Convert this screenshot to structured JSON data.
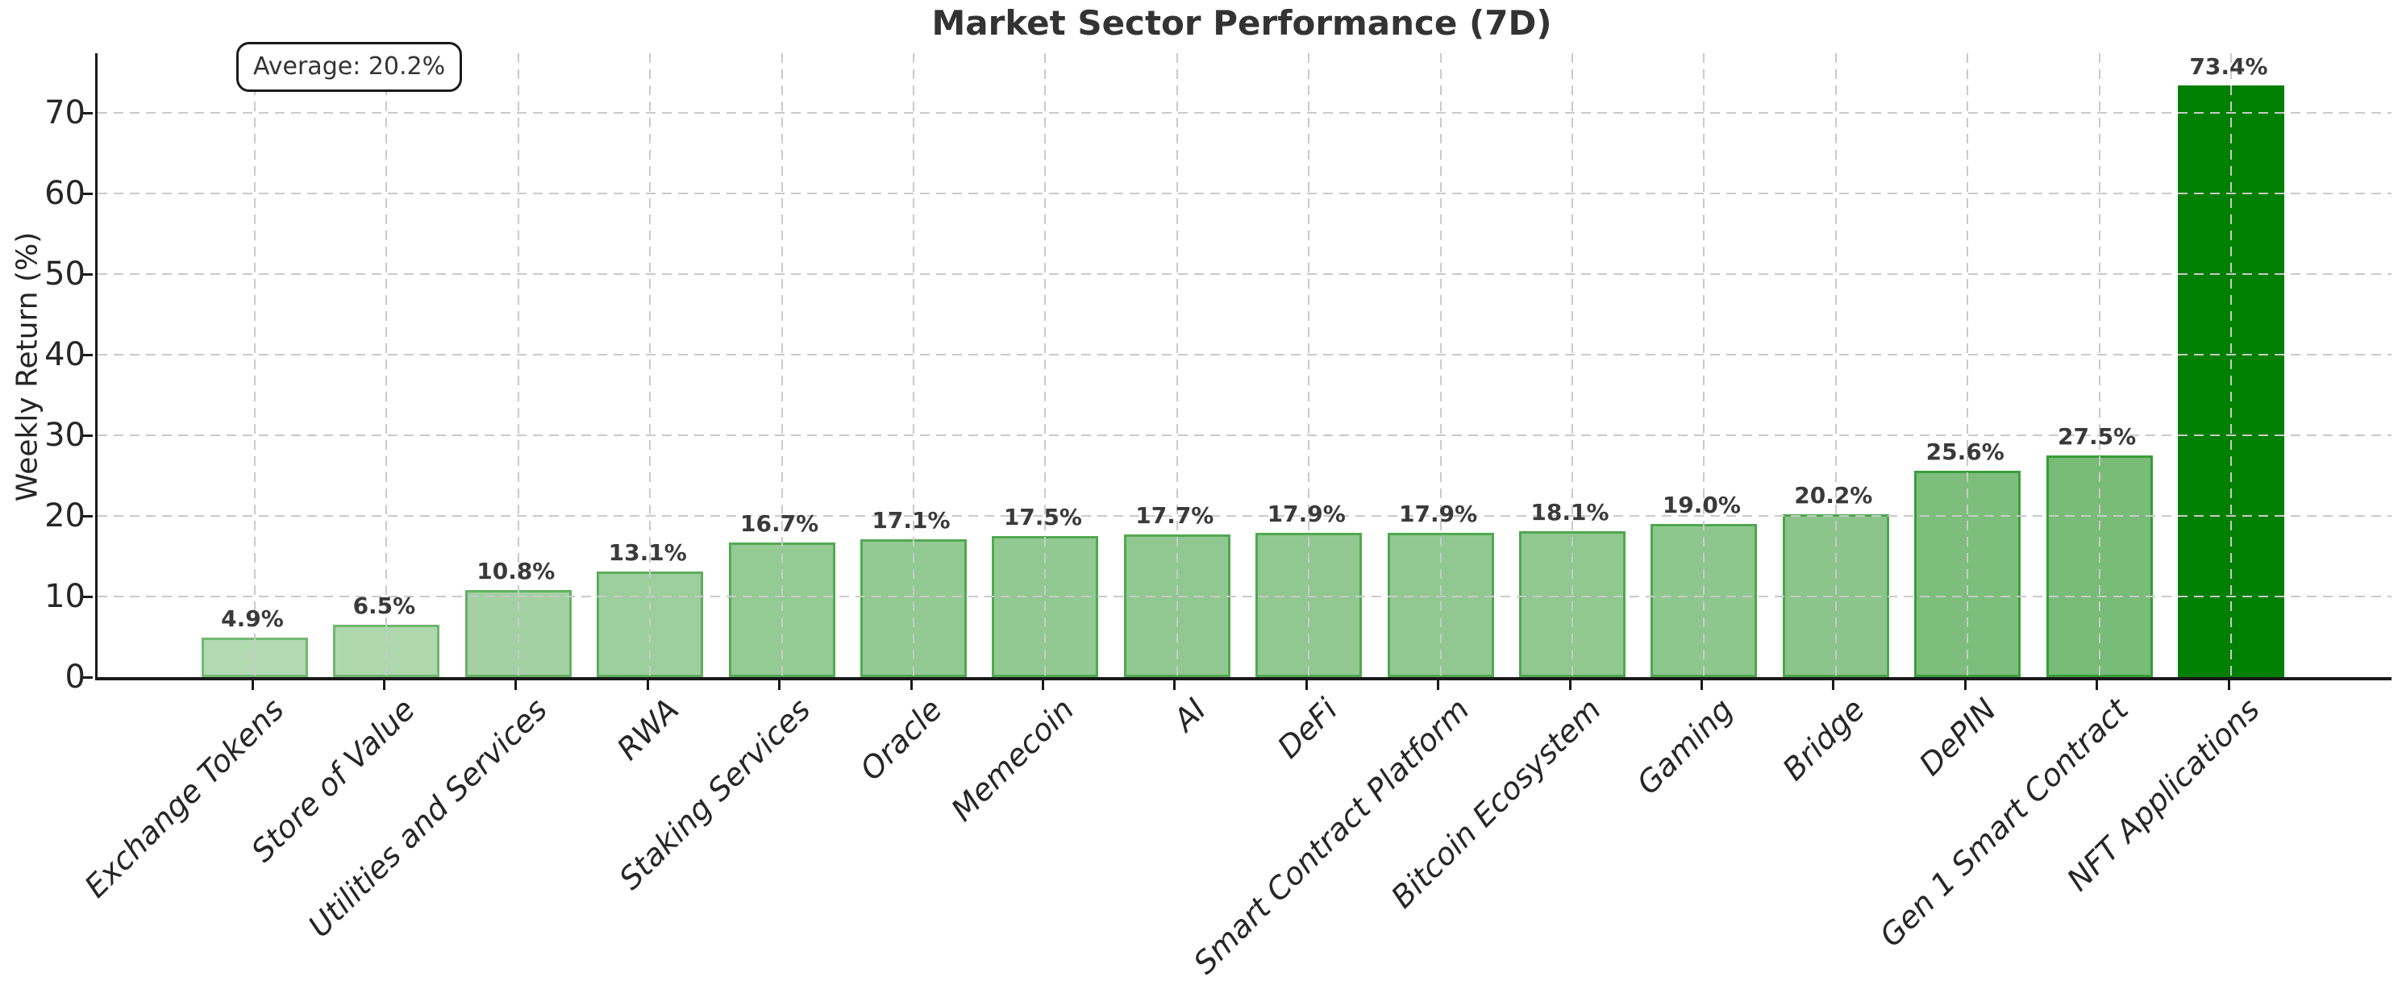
{
  "figure": {
    "title": "Market Sector Performance (7D)",
    "ylabel": "Weekly Return (%)",
    "annotation": "Average: 20.2%"
  },
  "chart_data": {
    "type": "bar",
    "title": "Market Sector Performance (7D)",
    "xlabel": "",
    "ylabel": "Weekly Return (%)",
    "annotation": "Average: 20.2%",
    "legend": "none",
    "grid": "dashed both axes, drawn above bars",
    "categories": [
      "Exchange Tokens",
      "Store of Value",
      "Utilities and Services",
      "RWA",
      "Staking Services",
      "Oracle",
      "Memecoin",
      "AI",
      "DeFi",
      "Smart Contract Platform",
      "Bitcoin Ecosystem",
      "Gaming",
      "Bridge",
      "DePIN",
      "Gen 1 Smart Contract",
      "NFT Applications"
    ],
    "values": [
      4.9,
      6.5,
      10.8,
      13.1,
      16.7,
      17.1,
      17.5,
      17.7,
      17.9,
      17.9,
      18.1,
      19.0,
      20.2,
      25.6,
      27.5,
      73.4
    ],
    "value_labels": [
      "4.9%",
      "6.5%",
      "10.8%",
      "13.1%",
      "16.7%",
      "17.1%",
      "17.5%",
      "17.7%",
      "17.9%",
      "17.9%",
      "18.1%",
      "19.0%",
      "20.2%",
      "25.6%",
      "27.5%",
      "73.4%"
    ],
    "yticks": [
      0,
      10,
      20,
      30,
      40,
      50,
      60,
      70
    ],
    "ytick_labels": [
      "0",
      "10",
      "20",
      "30",
      "40",
      "50",
      "60",
      "70"
    ],
    "ylim": [
      0,
      77.4
    ],
    "bar_fill_colors": [
      "#b2d9b2",
      "#aed7ae",
      "#a3d1a3",
      "#9dce9d",
      "#94ca94",
      "#93c993",
      "#92c992",
      "#91c891",
      "#91c891",
      "#91c891",
      "#90c890",
      "#8ec78e",
      "#8bc58b",
      "#7dbe7d",
      "#78bc78",
      "#008000"
    ],
    "bar_edge_colors": [
      "#73b973",
      "#6fb76f",
      "#63b163",
      "#5dae5d",
      "#54aa54",
      "#53a953",
      "#52a952",
      "#51a851",
      "#51a851",
      "#51a851",
      "#50a850",
      "#4ea74e",
      "#4ba54b",
      "#3d9e3d",
      "#389c38",
      "#008000"
    ],
    "colors": {
      "max_bar": "#008000",
      "grid": "#cacaca",
      "spine": "#1a1a1a",
      "title_text": "#333333",
      "tick_text": "#262626",
      "value_label_text": "#3a3a3a",
      "background": "#ffffff"
    }
  }
}
